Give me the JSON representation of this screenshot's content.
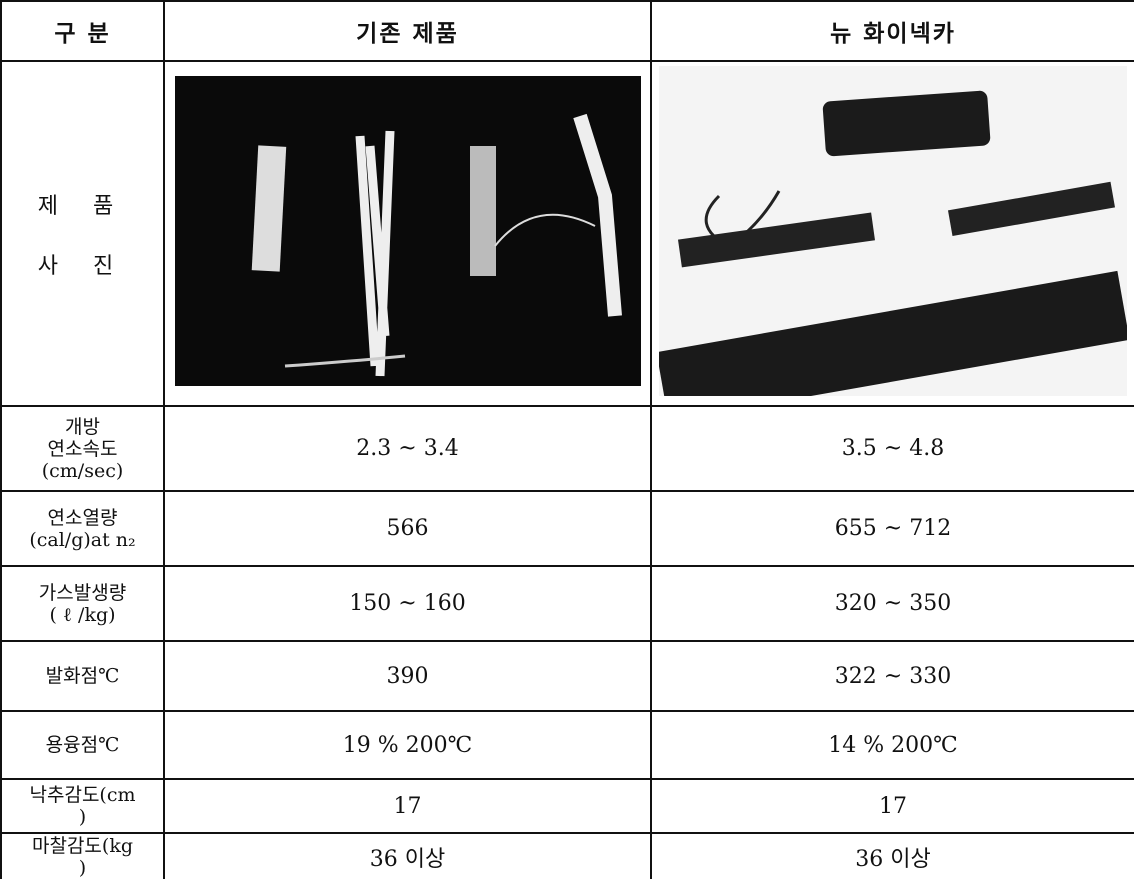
{
  "header": [
    "구 분",
    "기존 제품",
    "뉴 화이넥카"
  ],
  "photo_row": {
    "label": [
      "제 품",
      "사 진"
    ]
  },
  "rows": [
    {
      "label": [
        "개방",
        "연소속도",
        "(cm/sec)"
      ],
      "cells": [
        "2.3 ~ 3.4",
        "3.5 ~ 4.8"
      ]
    },
    {
      "label": [
        "연소열량",
        "(cal/g)at n₂"
      ],
      "cells": [
        "566",
        "655 ~ 712"
      ]
    },
    {
      "label": [
        "가스발생량",
        "( ℓ /kg)"
      ],
      "cells": [
        "150 ~ 160",
        "320 ~ 350"
      ]
    },
    {
      "label": [
        "발화점℃"
      ],
      "cells": [
        "390",
        "322 ~ 330"
      ]
    },
    {
      "label": [
        "용융점℃"
      ],
      "cells": [
        "19 % 200℃",
        "14 % 200℃"
      ]
    },
    {
      "label": [
        "낙추감도(cm",
        ")"
      ],
      "cells": [
        "17",
        "17"
      ]
    },
    {
      "label": [
        "마찰감도(kg",
        ")"
      ],
      "cells": [
        "36 이상",
        "36 이상"
      ]
    }
  ]
}
